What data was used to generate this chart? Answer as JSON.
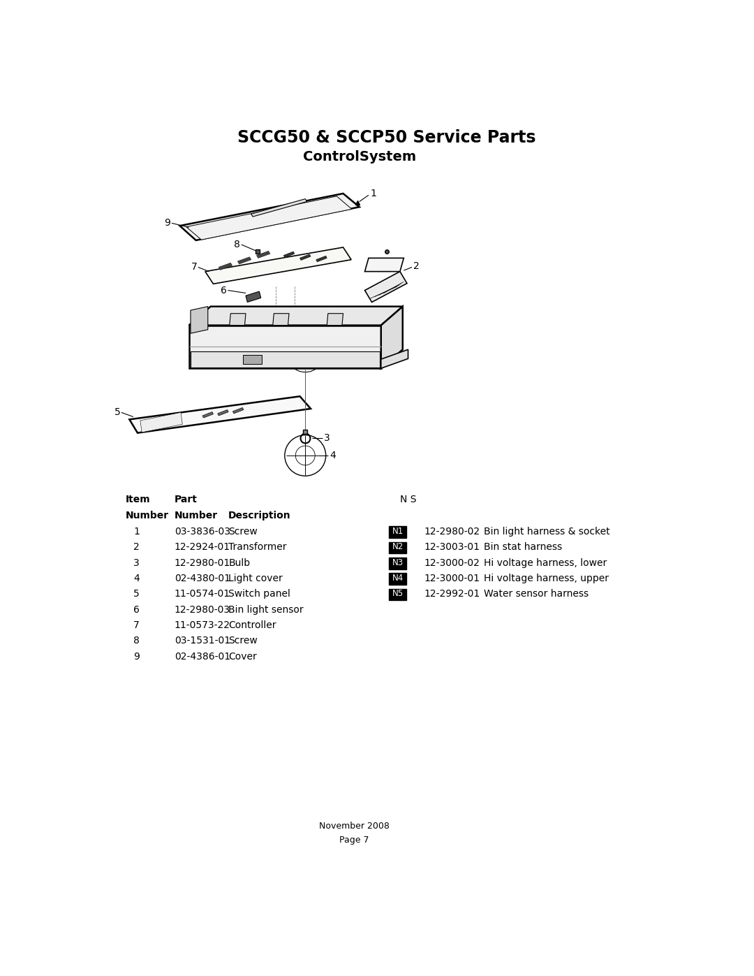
{
  "title": "SCCG50 & SCCP50 Service Parts",
  "subtitle": "ControlSystem",
  "bg_color": "#ffffff",
  "title_fontsize": 16,
  "subtitle_fontsize": 14,
  "items_left": [
    {
      "num": "1",
      "part": "03-3836-03",
      "desc": "Screw"
    },
    {
      "num": "2",
      "part": "12-2924-01",
      "desc": "Transformer"
    },
    {
      "num": "3",
      "part": "12-2980-01",
      "desc": "Bulb"
    },
    {
      "num": "4",
      "part": "02-4380-01",
      "desc": "Light cover"
    },
    {
      "num": "5",
      "part": "11-0574-01",
      "desc": "Switch panel"
    },
    {
      "num": "6",
      "part": "12-2980-03",
      "desc": "Bin light sensor"
    },
    {
      "num": "7",
      "part": "11-0573-22",
      "desc": "Controller"
    },
    {
      "num": "8",
      "part": "03-1531-01",
      "desc": "Screw"
    },
    {
      "num": "9",
      "part": "02-4386-01",
      "desc": "Cover"
    }
  ],
  "items_right": [
    {
      "num": "N1",
      "part": "12-2980-02",
      "desc": "Bin light harness & socket"
    },
    {
      "num": "N2",
      "part": "12-3003-01",
      "desc": "Bin stat harness"
    },
    {
      "num": "N3",
      "part": "12-3000-02",
      "desc": "Hi voltage harness, lower"
    },
    {
      "num": "N4",
      "part": "12-3000-01",
      "desc": "Hi voltage harness, upper"
    },
    {
      "num": "N5",
      "part": "12-2992-01",
      "desc": "Water sensor harness"
    }
  ],
  "footer_line1": "November 2008",
  "footer_line2": "Page 7",
  "ns_label": "N S"
}
